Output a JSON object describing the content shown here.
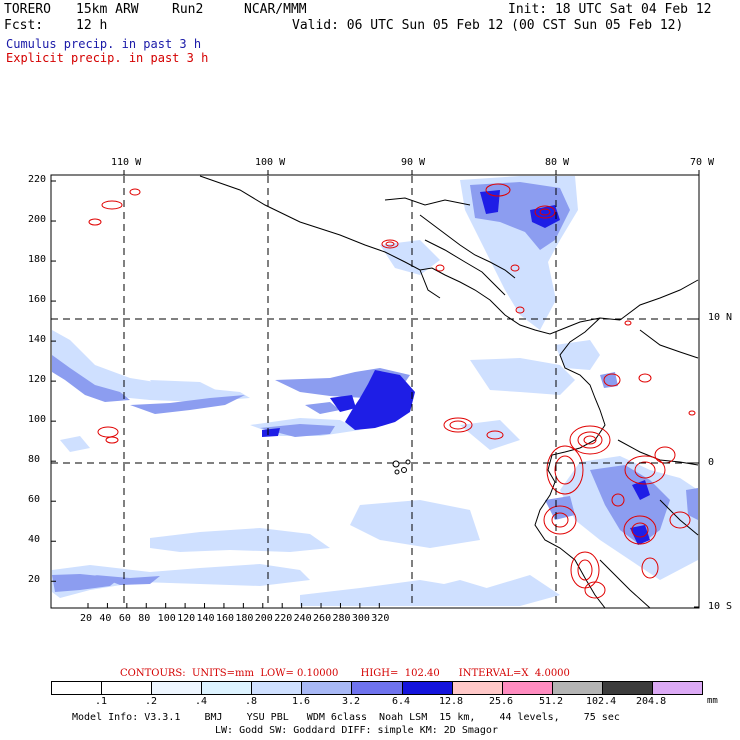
{
  "header": {
    "model": "TORERO",
    "grid": "15km ARW",
    "run": "Run2",
    "org": "NCAR/MMM",
    "init": "Init: 18 UTC Sat 04 Feb 12",
    "fcst_label": "Fcst:",
    "fcst_value": "12 h",
    "valid": "Valid: 06 UTC Sun 05 Feb 12 (00 CST Sun 05 Feb 12)"
  },
  "fields": {
    "cumulus": "Cumulus precip. in past 3 h",
    "explicit": "Explicit precip. in past 3 h"
  },
  "map": {
    "lon_labels": [
      "110 W",
      "100 W",
      "90 W",
      "80 W",
      "70 W"
    ],
    "lat_labels": [
      "10 N",
      "0",
      "10 S"
    ],
    "y_ticks": [
      "220",
      "200",
      "180",
      "160",
      "140",
      "120",
      "100",
      "80",
      "60",
      "40",
      "20"
    ],
    "x_ticks": [
      "20",
      "40",
      "60",
      "80",
      "100",
      "120",
      "140",
      "160",
      "180",
      "200",
      "220",
      "240",
      "260",
      "280",
      "300",
      "320"
    ],
    "colors": {
      "land_outline": "#000000",
      "explicit_contour": "#e00000",
      "cumulus_light": "#cfe0ff",
      "cumulus_mid": "#8c9df0",
      "cumulus_dark": "#1e1ee6"
    }
  },
  "contours_line": "CONTOURS:  UNITS=mm  LOW= 0.10000       HIGH=  102.40      INTERVAL=X  4.0000",
  "colorbar": {
    "labels": [
      ".1",
      ".2",
      ".4",
      ".8",
      "1.6",
      "3.2",
      "6.4",
      "12.8",
      "25.6",
      "51.2",
      "102.4",
      "204.8"
    ],
    "unit": "mm",
    "colors": [
      "#ffffff",
      "#ffffff",
      "#eef6ff",
      "#ddf3ff",
      "#cfe0ff",
      "#a8b8f5",
      "#6f73ee",
      "#1414dc",
      "#ffc8c8",
      "#ff8cc0",
      "#b4b4b4",
      "#3c3c3c",
      "#dcaaf5"
    ]
  },
  "footer": {
    "line1": "Model Info: V3.3.1    BMJ    YSU PBL   WDM 6class  Noah LSM  15 km,    44 levels,    75 sec",
    "line2": "LW: Godd SW: Goddard DIFF: simple KM: 2D Smagor"
  }
}
